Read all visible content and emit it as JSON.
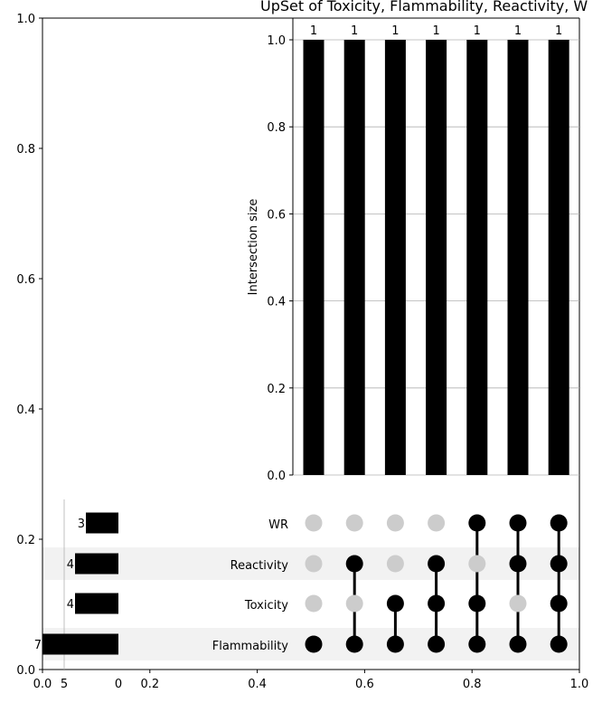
{
  "chart_data": {
    "type": "bar",
    "title": "UpSet of Toxicity, Flammability, Reactivity, W",
    "outer_axis": {
      "x_ticks": [
        "0.0",
        "0.2",
        "0.4",
        "0.6",
        "0.8",
        "1.0"
      ],
      "y_ticks": [
        "0.0",
        "0.2",
        "0.4",
        "0.6",
        "0.8",
        "1.0"
      ]
    },
    "intersections": {
      "ylabel": "Intersection size",
      "ylim": [
        0,
        1.0
      ],
      "y_ticks": [
        "0.0",
        "0.2",
        "0.4",
        "0.6",
        "0.8",
        "1.0"
      ],
      "grid": true,
      "values": [
        1,
        1,
        1,
        1,
        1,
        1,
        1
      ],
      "labels": [
        "1",
        "1",
        "1",
        "1",
        "1",
        "1",
        "1"
      ]
    },
    "sets": {
      "names": [
        "WR",
        "Reactivity",
        "Toxicity",
        "Flammability"
      ],
      "sizes": [
        3,
        4,
        4,
        7
      ],
      "size_labels": [
        "3",
        "4",
        "4",
        "7"
      ],
      "xlim": [
        7,
        0
      ],
      "x_ticks": [
        "0",
        "5"
      ]
    },
    "matrix": [
      [
        0,
        0,
        0,
        1
      ],
      [
        0,
        1,
        0,
        1
      ],
      [
        0,
        0,
        1,
        1
      ],
      [
        0,
        1,
        1,
        1
      ],
      [
        1,
        0,
        1,
        1
      ],
      [
        1,
        1,
        0,
        1
      ],
      [
        1,
        1,
        1,
        1
      ]
    ],
    "colors": {
      "bar": "#000000",
      "active_dot": "#000000",
      "inactive_dot": "#cccccc",
      "stripe": "#f2f2f2",
      "grid": "#b0b0b0"
    }
  }
}
